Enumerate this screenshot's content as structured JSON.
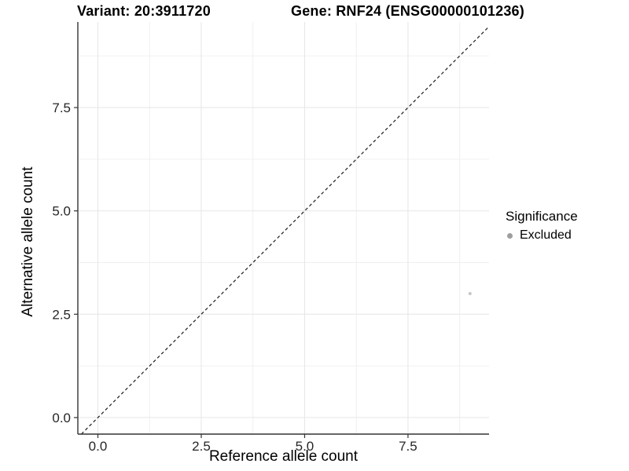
{
  "header": {
    "variant_title": "Variant: 20:3911720",
    "gene_title": "Gene: RNF24 (ENSG00000101236)"
  },
  "legend": {
    "title": "Significance",
    "items": [
      {
        "label": "Excluded",
        "color": "#9e9e9e"
      }
    ]
  },
  "colors": {
    "background": "#ffffff",
    "grid_major": "#e6e6e6",
    "grid_minor": "#f0f0f0",
    "axis_line": "#333333",
    "reference_line": "#1a1a1a",
    "tick_text": "#262626"
  },
  "chart_data": {
    "type": "scatter",
    "title": "Variant: 20:3911720   Gene: RNF24 (ENSG00000101236)",
    "xlabel": "Reference allele count",
    "ylabel": "Alternative allele count",
    "xlim": [
      -0.485,
      9.46
    ],
    "ylim": [
      -0.4,
      9.57
    ],
    "x_ticks": {
      "values": [
        0,
        2.5,
        5,
        7.5
      ],
      "labels": [
        "0.0",
        "2.5",
        "5.0",
        "7.5"
      ]
    },
    "y_ticks": {
      "values": [
        0,
        2.5,
        5,
        7.5
      ],
      "labels": [
        "0.0",
        "2.5",
        "5.0",
        "7.5"
      ]
    },
    "x_minor_ticks": [
      1.25,
      3.75,
      6.25,
      8.75
    ],
    "y_minor_ticks": [
      1.25,
      3.75,
      6.25,
      8.75
    ],
    "grid": true,
    "legend_position": "right",
    "reference_line": {
      "type": "identity",
      "style": "dashed",
      "color": "#1a1a1a"
    },
    "series": [
      {
        "name": "Excluded",
        "color": "#c6c6c6",
        "point_radius": 2,
        "points": [
          {
            "x": 9,
            "y": 3
          }
        ]
      }
    ]
  }
}
